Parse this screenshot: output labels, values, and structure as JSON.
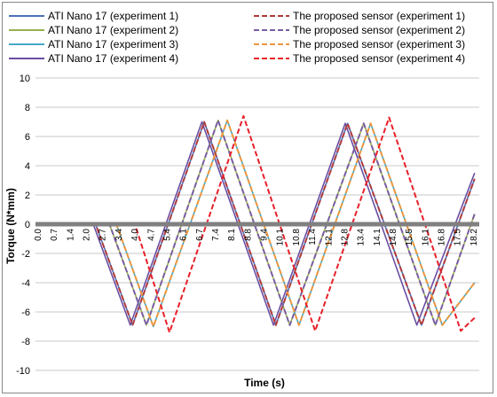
{
  "chart_data": {
    "type": "line",
    "xlabel": "Time (s)",
    "ylabel": "Torque (N*mm)",
    "ylim": [
      -10,
      10
    ],
    "yticks": [
      -10,
      -8,
      -6,
      -4,
      -2,
      0,
      2,
      4,
      6,
      8,
      10
    ],
    "xticks": [
      "0.0",
      "0.7",
      "1.4",
      "2.0",
      "2.7",
      "3.4",
      "4.0",
      "4.7",
      "5.4",
      "6.1",
      "6.7",
      "7.4",
      "8.1",
      "8.8",
      "9.4",
      "10.1",
      "10.8",
      "11.4",
      "12.1",
      "12.8",
      "13.4",
      "14.1",
      "14.8",
      "15.5",
      "16.1",
      "16.8",
      "17.5",
      "18.2"
    ],
    "xlim": [
      0,
      19.2
    ],
    "grid": "horizontal",
    "legend": "top",
    "series": [
      {
        "name": "ATI Nano 17 (experiment 1)",
        "color": "#4a72b8",
        "style": "solid",
        "points": [
          [
            0,
            0
          ],
          [
            2.6,
            0
          ],
          [
            4.2,
            -6.9
          ],
          [
            7.3,
            7.0
          ],
          [
            10.4,
            -6.9
          ],
          [
            13.5,
            6.9
          ],
          [
            16.7,
            -6.9
          ],
          [
            19.0,
            3.1
          ]
        ]
      },
      {
        "name": "ATI Nano 17 (experiment 2)",
        "color": "#97b04f",
        "style": "solid",
        "points": [
          [
            0,
            0
          ],
          [
            3.2,
            0
          ],
          [
            4.8,
            -6.9
          ],
          [
            7.9,
            7.1
          ],
          [
            11.0,
            -6.9
          ],
          [
            14.2,
            6.9
          ],
          [
            17.3,
            -6.9
          ],
          [
            19.0,
            0.7
          ]
        ]
      },
      {
        "name": "ATI Nano 17 (experiment 3)",
        "color": "#46a8c6",
        "style": "solid",
        "points": [
          [
            0,
            0
          ],
          [
            3.5,
            0
          ],
          [
            5.1,
            -7.0
          ],
          [
            8.3,
            7.1
          ],
          [
            11.4,
            -6.9
          ],
          [
            14.5,
            6.9
          ],
          [
            17.6,
            -6.9
          ],
          [
            19.0,
            -4.0
          ]
        ]
      },
      {
        "name": "ATI Nano 17 (experiment 4)",
        "color": "#6a4ea2",
        "style": "solid",
        "points": [
          [
            0,
            0
          ],
          [
            2.5,
            0
          ],
          [
            4.1,
            -6.9
          ],
          [
            7.2,
            7.0
          ],
          [
            10.3,
            -6.9
          ],
          [
            13.4,
            6.9
          ],
          [
            16.5,
            -6.9
          ],
          [
            19.0,
            3.5
          ]
        ]
      },
      {
        "name": "The proposed sensor (experiment 1)",
        "color": "#b03a3a",
        "style": "dashed",
        "points": [
          [
            0,
            0
          ],
          [
            2.6,
            0
          ],
          [
            4.2,
            -6.9
          ],
          [
            7.3,
            7.0
          ],
          [
            10.4,
            -6.9
          ],
          [
            13.5,
            6.9
          ],
          [
            16.7,
            -6.9
          ],
          [
            19.0,
            3.1
          ]
        ]
      },
      {
        "name": "The proposed sensor (experiment 2)",
        "color": "#7a5da3",
        "style": "dashed",
        "points": [
          [
            0,
            0
          ],
          [
            3.2,
            0
          ],
          [
            4.8,
            -6.9
          ],
          [
            7.9,
            7.1
          ],
          [
            11.0,
            -6.9
          ],
          [
            14.2,
            6.9
          ],
          [
            17.3,
            -6.9
          ],
          [
            19.0,
            0.7
          ]
        ]
      },
      {
        "name": "The proposed sensor (experiment 3)",
        "color": "#f0963c",
        "style": "dashed",
        "points": [
          [
            0,
            0
          ],
          [
            3.5,
            0
          ],
          [
            5.1,
            -7.0
          ],
          [
            8.3,
            7.1
          ],
          [
            11.4,
            -6.9
          ],
          [
            14.5,
            6.9
          ],
          [
            17.6,
            -6.9
          ],
          [
            19.0,
            -4.0
          ]
        ]
      },
      {
        "name": "The proposed sensor (experiment 4)",
        "color": "#e8202a",
        "style": "dashed",
        "points": [
          [
            0,
            0
          ],
          [
            4.3,
            0
          ],
          [
            5.8,
            -7.4
          ],
          [
            9.0,
            7.4
          ],
          [
            12.1,
            -7.3
          ],
          [
            15.3,
            7.3
          ],
          [
            18.4,
            -7.3
          ],
          [
            19.0,
            -6.4
          ]
        ]
      }
    ]
  }
}
